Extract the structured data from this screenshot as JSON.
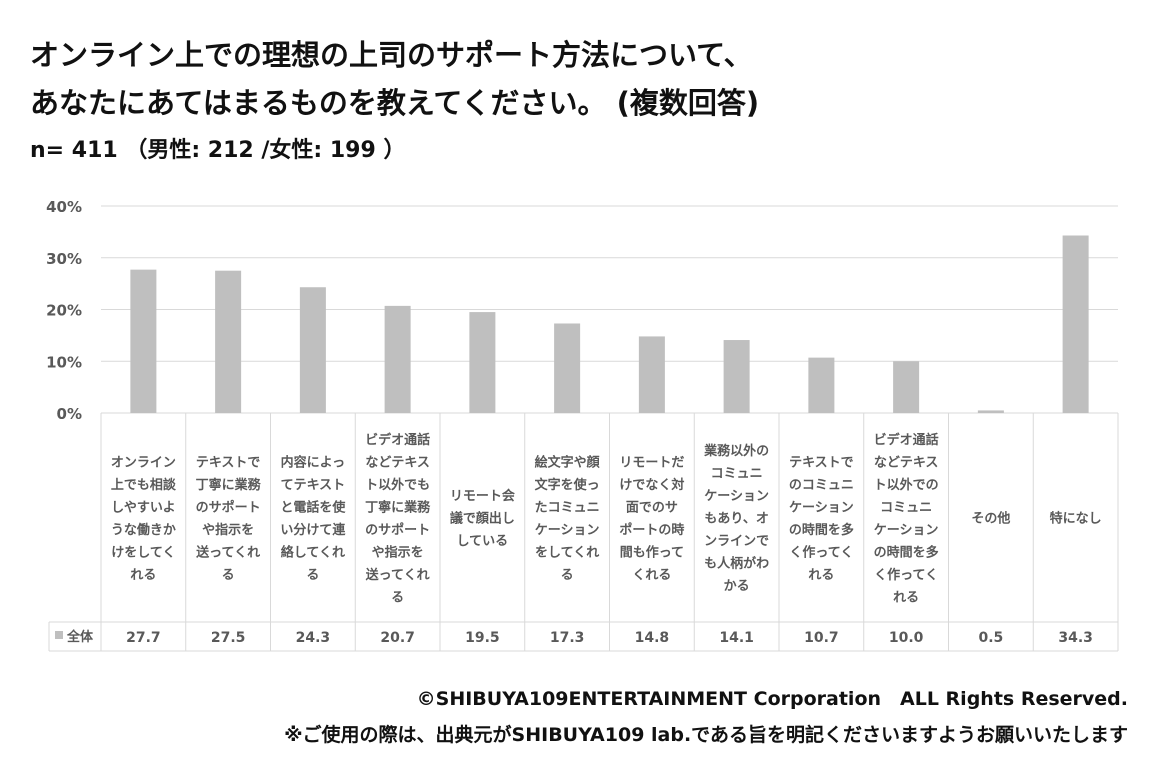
{
  "title_line1": "オンライン上での理想の上司のサポート方法について、",
  "title_line2": "あなたにあてはまるものを教えてください。 (複数回答)",
  "subtitle": "n= 411 （男性: 212 /女性: 199 ）",
  "footer_line1": "©SHIBUYA109ENTERTAINMENT Corporation　ALL Rights Reserved.",
  "footer_line2": "※ご使用の際は、出典元がSHIBUYA109 lab.である旨を明記くださいますようお願いいたします",
  "colors": {
    "bar": "#bfbfbf",
    "grid": "#d9d9d9",
    "text": "#595959"
  },
  "chart_data": {
    "type": "bar",
    "ylim": [
      0,
      40
    ],
    "yticks": [
      "0%",
      "10%",
      "20%",
      "30%",
      "40%"
    ],
    "grid": true,
    "categories": [
      [
        "オンライン",
        "上でも相談",
        "しやすいよ",
        "うな働きか",
        "けをしてく",
        "れる"
      ],
      [
        "テキストで",
        "丁寧に業務",
        "のサポート",
        "や指示を",
        "送ってくれ",
        "る"
      ],
      [
        "内容によっ",
        "てテキスト",
        "と電話を使",
        "い分けて連",
        "絡してくれ",
        "る"
      ],
      [
        "ビデオ通話",
        "などテキス",
        "ト以外でも",
        "丁寧に業務",
        "のサポート",
        "や指示を",
        "送ってくれ",
        "る"
      ],
      [
        "リモート会",
        "議で顔出し",
        "している"
      ],
      [
        "絵文字や顔",
        "文字を使っ",
        "たコミュニ",
        "ケーション",
        "をしてくれ",
        "る"
      ],
      [
        "リモートだ",
        "けでなく対",
        "面でのサ",
        "ポートの時",
        "間も作って",
        "くれる"
      ],
      [
        "業務以外の",
        "コミュニ",
        "ケーション",
        "もあり、オ",
        "ンラインで",
        "も人柄がわ",
        "かる"
      ],
      [
        "テキストで",
        "のコミュニ",
        "ケーション",
        "の時間を多",
        "く作ってく",
        "れる"
      ],
      [
        "ビデオ通話",
        "などテキス",
        "ト以外での",
        "コミュニ",
        "ケーション",
        "の時間を多",
        "く作ってく",
        "れる"
      ],
      [
        "その他"
      ],
      [
        "特になし"
      ]
    ],
    "series": [
      {
        "name": "全体",
        "values": [
          27.7,
          27.5,
          24.3,
          20.7,
          19.5,
          17.3,
          14.8,
          14.1,
          10.7,
          10.0,
          0.5,
          34.3
        ],
        "labels": [
          "27.7",
          "27.5",
          "24.3",
          "20.7",
          "19.5",
          "17.3",
          "14.8",
          "14.1",
          "10.7",
          "10.0",
          "0.5",
          "34.3"
        ]
      }
    ]
  }
}
